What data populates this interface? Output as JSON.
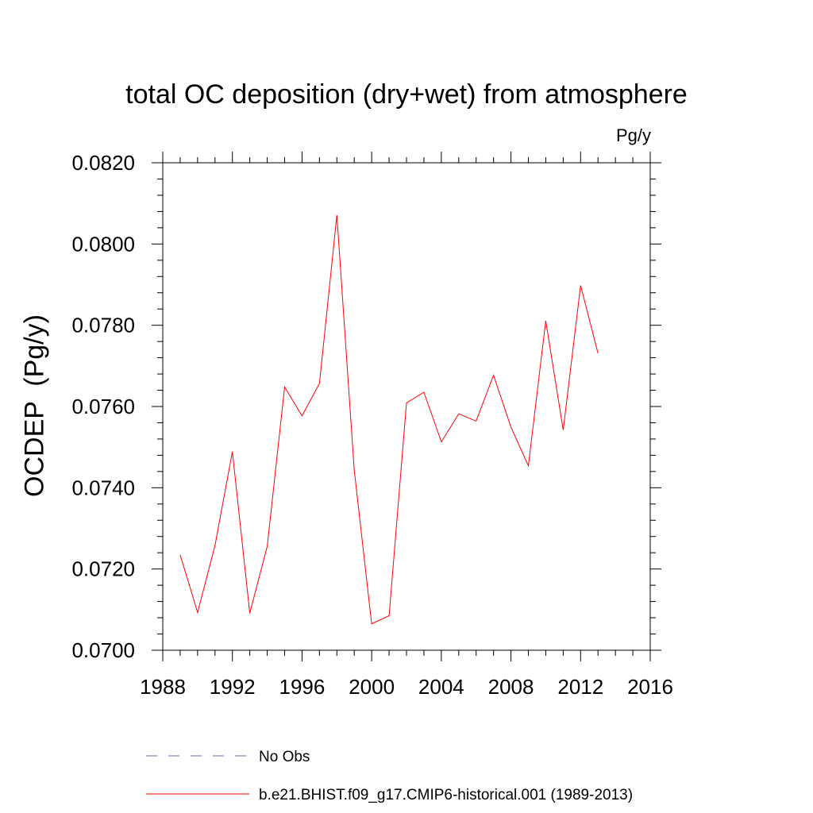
{
  "chart_data": {
    "type": "line",
    "title": "total OC deposition (dry+wet) from atmosphere",
    "units": "Pg/y",
    "ylabel": "OCDEP  (Pg/y)",
    "xlabel": "",
    "xlim": [
      1988,
      2016
    ],
    "ylim": [
      0.07,
      0.082
    ],
    "x_ticks": [
      "1988",
      "1992",
      "1996",
      "2000",
      "2004",
      "2008",
      "2012",
      "2016"
    ],
    "y_ticks": [
      "0.0700",
      "0.0720",
      "0.0740",
      "0.0760",
      "0.0780",
      "0.0800",
      "0.0820"
    ],
    "grid": false,
    "legend_position": "bottom",
    "series": [
      {
        "name": "b.e21.BHIST.f09_g17.CMIP6-historical.001 (1989-2013)",
        "color": "#ff0000",
        "style": "solid",
        "x": [
          1989,
          1990,
          1991,
          1992,
          1993,
          1994,
          1995,
          1996,
          1997,
          1998,
          1999,
          2000,
          2001,
          2002,
          2003,
          2004,
          2005,
          2006,
          2007,
          2008,
          2009,
          2010,
          2011,
          2012,
          2013
        ],
        "y": [
          0.07235,
          0.07093,
          0.07258,
          0.07489,
          0.07091,
          0.07256,
          0.07648,
          0.07577,
          0.07657,
          0.08071,
          0.07443,
          0.07065,
          0.07085,
          0.07609,
          0.07635,
          0.07513,
          0.07582,
          0.07564,
          0.07677,
          0.07549,
          0.07454,
          0.07811,
          0.07542,
          0.07898,
          0.07731
        ]
      }
    ],
    "legend": [
      {
        "label": "No Obs",
        "color": "#6a6ab4",
        "style": "dashed"
      },
      {
        "label": "b.e21.BHIST.f09_g17.CMIP6-historical.001 (1989-2013)",
        "color": "#ff0000",
        "style": "solid"
      }
    ]
  }
}
